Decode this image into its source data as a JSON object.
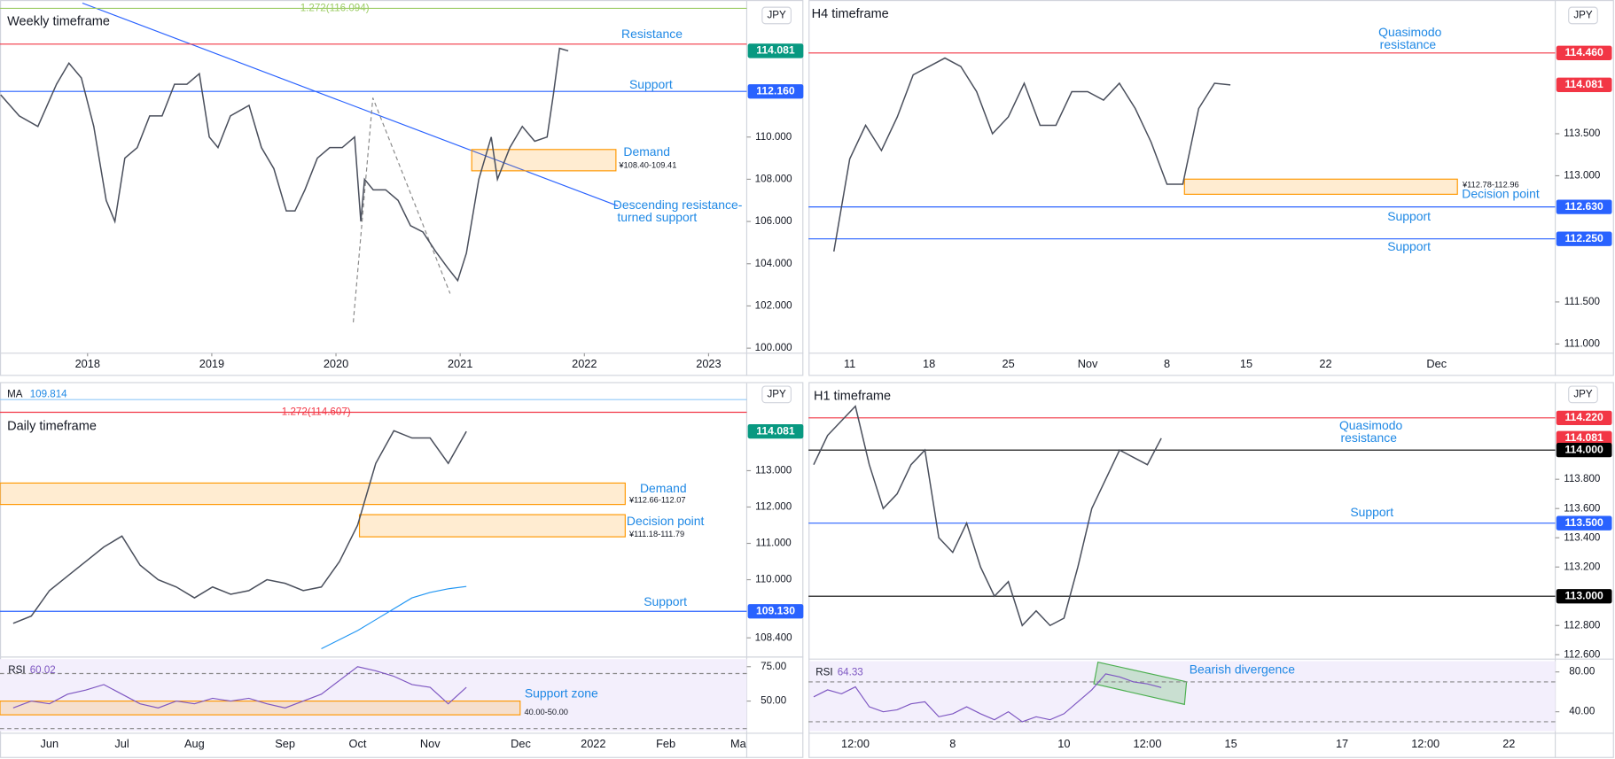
{
  "panels": [
    {
      "title": "Weekly timeframe",
      "currency": "JPY",
      "type": "line",
      "x": [
        2017.3,
        2017.45,
        2017.6,
        2017.75,
        2017.85,
        2017.95,
        2018.05,
        2018.15,
        2018.22,
        2018.3,
        2018.4,
        2018.5,
        2018.6,
        2018.7,
        2018.8,
        2018.9,
        2018.98,
        2019.05,
        2019.15,
        2019.3,
        2019.4,
        2019.5,
        2019.6,
        2019.67,
        2019.75,
        2019.85,
        2019.95,
        2020.05,
        2020.15,
        2020.2,
        2020.23,
        2020.3,
        2020.4,
        2020.5,
        2020.6,
        2020.7,
        2020.8,
        2020.9,
        2020.98,
        2021.05,
        2021.15,
        2021.25,
        2021.3,
        2021.4,
        2021.5,
        2021.6,
        2021.7,
        2021.75,
        2021.8,
        2021.87
      ],
      "values": [
        112,
        111,
        110.5,
        112.5,
        113.5,
        112.8,
        110.5,
        107,
        106,
        109,
        109.5,
        111,
        111,
        112.5,
        112.5,
        113,
        110,
        109.5,
        111,
        111.5,
        109.5,
        108.5,
        106.5,
        106.5,
        107.5,
        109,
        109.5,
        109.5,
        110,
        106,
        108,
        107.5,
        107.5,
        107,
        105.8,
        105.5,
        104.6,
        103.8,
        103.2,
        104.5,
        108,
        110,
        108,
        109.5,
        110.5,
        109.8,
        110,
        112,
        114.2,
        114.081
      ],
      "xlim": [
        2017.295,
        2023.307
      ],
      "xticks": [
        2018,
        2019,
        2020,
        2021,
        2022,
        2023
      ],
      "ylim": [
        99.76,
        116.49
      ],
      "yticks": [
        {
          "value": 100,
          "label": "100.000"
        },
        {
          "value": 102,
          "label": "102.000"
        },
        {
          "value": 104,
          "label": "104.000"
        },
        {
          "value": 106,
          "label": "106.000"
        },
        {
          "value": 108,
          "label": "108.000"
        },
        {
          "value": 110,
          "label": "110.000"
        }
      ],
      "levels": [
        {
          "value": 116.094,
          "caption": "1.272(116.094)",
          "color": "#9ccc65"
        },
        {
          "value": 114.4,
          "color": "#f23645"
        },
        {
          "value": 114.081,
          "tag": "114.081",
          "color": "#089981",
          "line": false
        },
        {
          "value": 112.16,
          "tag": "112.160",
          "color": "#2962ff"
        }
      ],
      "zones": [
        {
          "low": 108.4,
          "high": 109.41,
          "label": "¥108.40-109.41"
        }
      ],
      "annotations": [
        "Resistance",
        "Support",
        "Demand",
        "Descending resistance-",
        "turned support"
      ]
    },
    {
      "title": "H4 timeframe",
      "currency": "JPY",
      "type": "line",
      "categories": [
        null,
        "11",
        null,
        null,
        null,
        null,
        "18",
        null,
        null,
        null,
        null,
        "25",
        null,
        null,
        null,
        null,
        "Nov",
        null,
        null,
        null,
        null,
        "8",
        null,
        null,
        null,
        null,
        "15",
        null,
        null,
        null,
        null,
        "22",
        null,
        null,
        null,
        null,
        null,
        null,
        "Dec",
        null,
        null,
        null,
        null,
        null,
        null,
        null
      ],
      "values": [
        112.1,
        113.2,
        113.6,
        113.3,
        113.7,
        114.2,
        114.3,
        114.4,
        114.3,
        114.0,
        113.5,
        113.7,
        114.1,
        113.6,
        113.6,
        114.0,
        114.0,
        113.9,
        114.1,
        113.8,
        113.4,
        112.9,
        112.9,
        113.8,
        114.1,
        114.081,
        null,
        null,
        null,
        null,
        null,
        null,
        null,
        null,
        null,
        null,
        null,
        null,
        null,
        null,
        null,
        null,
        null,
        null,
        null,
        null
      ],
      "ylim": [
        110.89,
        115.09
      ],
      "yticks": [
        {
          "value": 111,
          "label": "111.000"
        },
        {
          "value": 111.5,
          "label": "111.500"
        },
        {
          "value": 113,
          "label": "113.000"
        },
        {
          "value": 113.5,
          "label": "113.500"
        }
      ],
      "levels": [
        {
          "value": 114.46,
          "tag": "114.460",
          "color": "#f23645"
        },
        {
          "value": 114.081,
          "tag": "114.081",
          "color": "#f23645",
          "line": false
        },
        {
          "value": 112.63,
          "tag": "112.630",
          "color": "#2962ff"
        },
        {
          "value": 112.25,
          "tag": "112.250",
          "color": "#2962ff"
        }
      ],
      "zones": [
        {
          "low": 112.78,
          "high": 112.96,
          "label": "¥112.78-112.96"
        }
      ],
      "annotations": [
        "Quasimodo",
        "resistance",
        "Decision point",
        "Support",
        "Support"
      ]
    },
    {
      "title": "Daily timeframe",
      "currency": "JPY",
      "type": "line",
      "categories": [
        null,
        null,
        "Jun",
        null,
        null,
        null,
        "Jul",
        null,
        null,
        null,
        "Aug",
        null,
        null,
        null,
        null,
        "Sep",
        null,
        null,
        null,
        "Oct",
        null,
        null,
        null,
        "Nov",
        null,
        null,
        null,
        null,
        "Dec",
        null,
        null,
        null,
        "2022",
        null,
        null,
        null,
        "Feb",
        null,
        null,
        null,
        "Ma"
      ],
      "values": [
        108.8,
        109.0,
        109.7,
        110.1,
        110.5,
        110.9,
        111.2,
        110.4,
        110.0,
        109.8,
        109.5,
        109.8,
        109.6,
        109.7,
        110.0,
        109.9,
        109.7,
        109.8,
        110.5,
        111.5,
        113.2,
        114.1,
        113.9,
        113.9,
        113.2,
        114.081,
        null,
        null,
        null,
        null,
        null,
        null,
        null,
        null,
        null,
        null,
        null,
        null,
        null,
        null,
        null
      ],
      "ma": {
        "label": "MA",
        "last": 109.814,
        "values": [
          null,
          null,
          null,
          null,
          null,
          null,
          null,
          null,
          null,
          null,
          null,
          null,
          null,
          null,
          null,
          null,
          null,
          108.1,
          108.35,
          108.6,
          108.9,
          109.2,
          109.5,
          109.65,
          109.75,
          109.814,
          null,
          null,
          null,
          null,
          null,
          null,
          null,
          null,
          null,
          null,
          null,
          null,
          null,
          null,
          null
        ]
      },
      "ylim": [
        107.9,
        115.41
      ],
      "yticks": [
        {
          "value": 108.4,
          "label": "108.400"
        },
        {
          "value": 110,
          "label": "110.000"
        },
        {
          "value": 111,
          "label": "111.000"
        },
        {
          "value": 112,
          "label": "112.000"
        },
        {
          "value": 113,
          "label": "113.000"
        }
      ],
      "levels": [
        {
          "value": 114.607,
          "caption": "1.272(114.607)",
          "color": "#f23645"
        },
        {
          "value": 114.081,
          "tag": "114.081",
          "color": "#089981",
          "line": false
        },
        {
          "value": 109.13,
          "tag": "109.130",
          "color": "#2962ff"
        }
      ],
      "zones": [
        {
          "low": 112.07,
          "high": 112.66,
          "label": "¥112.66-112.07"
        },
        {
          "low": 111.18,
          "high": 111.79,
          "label": "¥111.18-111.79"
        }
      ],
      "annotations": [
        "Demand",
        "Decision point",
        "Support"
      ],
      "rsi": {
        "label": "RSI",
        "last": 60.02,
        "ylim": [
          28.1,
          80.5
        ],
        "yticks": [
          {
            "value": 75,
            "label": "75.00"
          },
          {
            "value": 50,
            "label": "50.00"
          }
        ],
        "bands": [
          70,
          30
        ],
        "values": [
          45,
          50,
          48,
          55,
          58,
          62,
          55,
          48,
          45,
          50,
          48,
          52,
          50,
          52,
          48,
          45,
          50,
          55,
          65,
          75,
          72,
          68,
          62,
          60,
          48,
          60.02,
          null,
          null,
          null,
          null,
          null,
          null,
          null,
          null,
          null,
          null,
          null,
          null,
          null,
          null,
          null
        ],
        "zones": [
          {
            "low": 40,
            "high": 50,
            "label": "40.00-50.00"
          }
        ],
        "annotations": [
          "Support zone"
        ]
      }
    },
    {
      "title": "H1 timeframe",
      "currency": "JPY",
      "type": "line",
      "categories": [
        null,
        null,
        null,
        "12:00",
        null,
        null,
        null,
        null,
        null,
        null,
        "8",
        null,
        null,
        null,
        null,
        null,
        null,
        null,
        "10",
        null,
        null,
        null,
        null,
        null,
        "12:00",
        null,
        null,
        null,
        null,
        null,
        "15",
        null,
        null,
        null,
        null,
        null,
        null,
        null,
        "17",
        null,
        null,
        null,
        null,
        null,
        "12:00",
        null,
        null,
        null,
        null,
        null,
        "22",
        null,
        null
      ],
      "values": [
        113.9,
        114.1,
        114.2,
        114.3,
        113.9,
        113.6,
        113.7,
        113.9,
        114.0,
        113.4,
        113.3,
        113.5,
        113.2,
        113.0,
        113.1,
        112.8,
        112.9,
        112.8,
        112.85,
        113.2,
        113.6,
        113.8,
        114.0,
        113.95,
        113.9,
        114.081,
        null,
        null,
        null,
        null,
        null,
        null,
        null,
        null,
        null,
        null,
        null,
        null,
        null,
        null,
        null,
        null,
        null,
        null,
        null,
        null,
        null,
        null,
        null,
        null,
        null,
        null,
        null
      ],
      "ylim": [
        112.57,
        114.458
      ],
      "yticks": [
        {
          "value": 112.6,
          "label": "112.600"
        },
        {
          "value": 112.8,
          "label": "112.800"
        },
        {
          "value": 113.2,
          "label": "113.200"
        },
        {
          "value": 113.4,
          "label": "113.400"
        },
        {
          "value": 113.6,
          "label": "113.600"
        },
        {
          "value": 113.8,
          "label": "113.800"
        }
      ],
      "levels": [
        {
          "value": 114.22,
          "tag": "114.220",
          "color": "#f23645"
        },
        {
          "value": 114.081,
          "tag": "114.081",
          "color": "#f23645",
          "line": false
        },
        {
          "value": 114.0,
          "tag": "114.000",
          "color": "#000000"
        },
        {
          "value": 113.5,
          "tag": "113.500",
          "color": "#2962ff"
        },
        {
          "value": 113.0,
          "tag": "113.000",
          "color": "#000000"
        }
      ],
      "annotations": [
        "Quasimodo",
        "resistance",
        "Support"
      ],
      "rsi": {
        "label": "RSI",
        "last": 64.33,
        "ylim": [
          20.5,
          90.8
        ],
        "yticks": [
          {
            "value": 80,
            "label": "80.00"
          },
          {
            "value": 40,
            "label": "40.00"
          }
        ],
        "bands": [
          70,
          30
        ],
        "values": [
          55,
          62,
          58,
          65,
          45,
          40,
          42,
          48,
          50,
          35,
          38,
          45,
          38,
          32,
          40,
          30,
          35,
          32,
          38,
          50,
          62,
          78,
          75,
          70,
          68,
          64.33,
          null,
          null,
          null,
          null,
          null,
          null,
          null,
          null,
          null,
          null,
          null,
          null,
          null,
          null,
          null,
          null,
          null,
          null,
          null,
          null,
          null,
          null,
          null,
          null,
          null,
          null,
          null
        ],
        "annotations": [
          "Bearish divergence"
        ]
      }
    }
  ]
}
